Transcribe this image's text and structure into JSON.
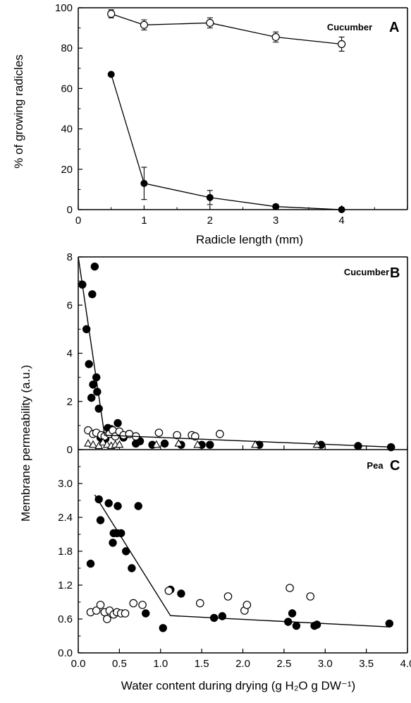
{
  "chart_data": [
    {
      "panel": "A",
      "type": "line",
      "label": "Cucumber",
      "xlabel": "Radicle length (mm)",
      "ylabel": "% of  growing radicles",
      "xlim": [
        0,
        5
      ],
      "ylim": [
        0,
        100
      ],
      "xticks": [
        "0",
        "1",
        "2",
        "3",
        "4"
      ],
      "yticks": [
        "0",
        "20",
        "40",
        "60",
        "80",
        "100"
      ],
      "series": [
        {
          "marker": "open-circle",
          "x": [
            0.5,
            1,
            2,
            3,
            4
          ],
          "y": [
            97,
            91.5,
            92.5,
            85.5,
            82
          ],
          "err": [
            2,
            2.5,
            2.5,
            2.5,
            3.5
          ]
        },
        {
          "marker": "filled-circle",
          "x": [
            0.5,
            1,
            2,
            3,
            4
          ],
          "y": [
            67,
            13,
            6,
            1.5,
            0
          ],
          "err": [
            0,
            8,
            3.5,
            1,
            0
          ]
        }
      ]
    },
    {
      "panel": "B",
      "type": "scatter",
      "label": "Cucumber",
      "xlim": [
        0,
        4
      ],
      "ylim": [
        0,
        8
      ],
      "yticks": [
        "0",
        "2",
        "4",
        "6",
        "8"
      ],
      "series": [
        {
          "marker": "filled-circle",
          "x": [
            0.05,
            0.1,
            0.13,
            0.16,
            0.17,
            0.18,
            0.2,
            0.22,
            0.23,
            0.25,
            0.27,
            0.3,
            0.33,
            0.36,
            0.4,
            0.45,
            0.48,
            0.55,
            0.7,
            0.75,
            0.9,
            1.05,
            1.25,
            1.5,
            1.6,
            2.2,
            2.95,
            3.4,
            3.8
          ],
          "y": [
            6.85,
            5.0,
            3.55,
            2.15,
            6.45,
            2.7,
            7.6,
            3.0,
            2.4,
            1.7,
            0.5,
            0.4,
            0.45,
            0.9,
            0.85,
            0.7,
            1.1,
            0.5,
            0.25,
            0.35,
            0.2,
            0.25,
            0.2,
            0.2,
            0.2,
            0.2,
            0.2,
            0.15,
            0.1
          ]
        },
        {
          "marker": "open-circle",
          "x": [
            0.12,
            0.18,
            0.22,
            0.28,
            0.32,
            0.38,
            0.42,
            0.45,
            0.5,
            0.55,
            0.62,
            0.7,
            0.98,
            1.2,
            1.38,
            1.42,
            1.72
          ],
          "y": [
            0.8,
            0.65,
            0.7,
            0.6,
            0.55,
            0.65,
            0.8,
            0.55,
            0.75,
            0.6,
            0.65,
            0.55,
            0.7,
            0.6,
            0.6,
            0.55,
            0.65
          ]
        },
        {
          "marker": "open-triangle",
          "x": [
            0.12,
            0.18,
            0.25,
            0.3,
            0.35,
            0.4,
            0.45,
            0.5,
            0.95,
            1.22,
            1.45,
            2.15,
            2.9
          ],
          "y": [
            0.25,
            0.2,
            0.15,
            0.3,
            0.2,
            0.15,
            0.2,
            0.2,
            0.2,
            0.25,
            0.2,
            0.2,
            0.2
          ]
        },
        {
          "marker": "fit-line",
          "x": [
            0.0,
            0.32,
            3.85
          ],
          "y": [
            8.0,
            0.6,
            0.1
          ]
        }
      ]
    },
    {
      "panel": "C",
      "type": "scatter",
      "label": "Pea",
      "xlabel": "Water content during drying (g H₂O g DW⁻¹)",
      "xlim": [
        0,
        4
      ],
      "ylim": [
        0,
        3.6
      ],
      "xticks": [
        "0.0",
        "0.5",
        "1.0",
        "1.5",
        "2.0",
        "2.5",
        "3.0",
        "3.5",
        "4.0"
      ],
      "yticks": [
        "0.0",
        "0.6",
        "1.2",
        "1.8",
        "2.4",
        "3.0"
      ],
      "series": [
        {
          "marker": "filled-circle",
          "x": [
            0.15,
            0.25,
            0.27,
            0.37,
            0.42,
            0.43,
            0.47,
            0.48,
            0.52,
            0.58,
            0.65,
            0.73,
            0.82,
            1.03,
            1.1,
            1.12,
            1.25,
            1.65,
            1.75,
            2.55,
            2.6,
            2.65,
            2.87,
            2.9,
            3.78
          ],
          "y": [
            1.58,
            2.72,
            2.35,
            2.65,
            1.95,
            2.12,
            2.12,
            2.6,
            2.12,
            1.8,
            1.5,
            2.6,
            0.7,
            0.44,
            1.1,
            1.12,
            1.05,
            0.62,
            0.65,
            0.55,
            0.7,
            0.48,
            0.48,
            0.5,
            0.52
          ]
        },
        {
          "marker": "open-circle",
          "x": [
            0.15,
            0.22,
            0.27,
            0.32,
            0.35,
            0.38,
            0.43,
            0.47,
            0.52,
            0.57,
            0.67,
            0.78,
            1.1,
            1.48,
            1.82,
            2.02,
            2.05,
            2.57,
            2.82
          ],
          "y": [
            0.72,
            0.75,
            0.85,
            0.72,
            0.6,
            0.75,
            0.68,
            0.72,
            0.7,
            0.7,
            0.88,
            0.85,
            1.1,
            0.88,
            1.0,
            0.75,
            0.85,
            1.15,
            1.0
          ]
        },
        {
          "marker": "fit-line",
          "x": [
            0.2,
            1.12,
            3.78
          ],
          "y": [
            2.8,
            0.66,
            0.46
          ]
        }
      ]
    }
  ],
  "shared_ylabel": "Membrane permeability (a.u.)"
}
